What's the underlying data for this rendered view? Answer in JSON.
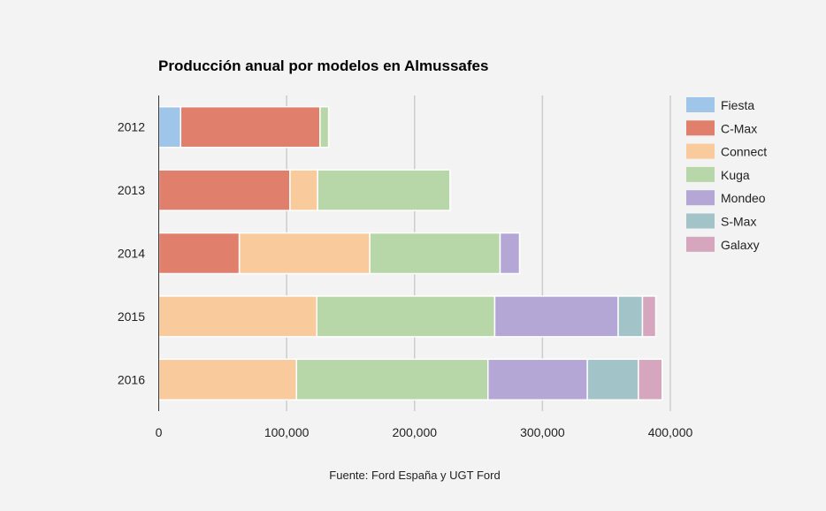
{
  "chart_data": {
    "type": "bar",
    "orientation": "horizontal",
    "stacked": true,
    "title": "Producción anual por modelos en Almussafes",
    "source": "Fuente: Ford España y UGT Ford",
    "categories": [
      "2012",
      "2013",
      "2014",
      "2015",
      "2016"
    ],
    "xlim": [
      0,
      400000
    ],
    "xticks": [
      0,
      100000,
      200000,
      300000,
      400000
    ],
    "xtick_labels": [
      "0",
      "100,000",
      "200,000",
      "300,000",
      "400,000"
    ],
    "grid": true,
    "legend_position": "right",
    "series": [
      {
        "name": "Fiesta",
        "color": "#9fc5e8",
        "values": [
          17100,
          0,
          0,
          0,
          0
        ]
      },
      {
        "name": "C-Max",
        "color": "#e07f6b",
        "values": [
          109000,
          102600,
          63000,
          0,
          0
        ]
      },
      {
        "name": "Connect",
        "color": "#f9ca9c",
        "values": [
          0,
          21600,
          102000,
          123600,
          107700
        ]
      },
      {
        "name": "Kuga",
        "color": "#b7d7a8",
        "values": [
          6700,
          103500,
          101900,
          139100,
          149700
        ]
      },
      {
        "name": "Mondeo",
        "color": "#b4a7d6",
        "values": [
          0,
          0,
          15200,
          96500,
          77700
        ]
      },
      {
        "name": "S-Max",
        "color": "#a2c4c9",
        "values": [
          0,
          0,
          0,
          19000,
          39900
        ]
      },
      {
        "name": "Galaxy",
        "color": "#d5a6bd",
        "values": [
          0,
          0,
          0,
          10400,
          18600
        ]
      }
    ]
  }
}
